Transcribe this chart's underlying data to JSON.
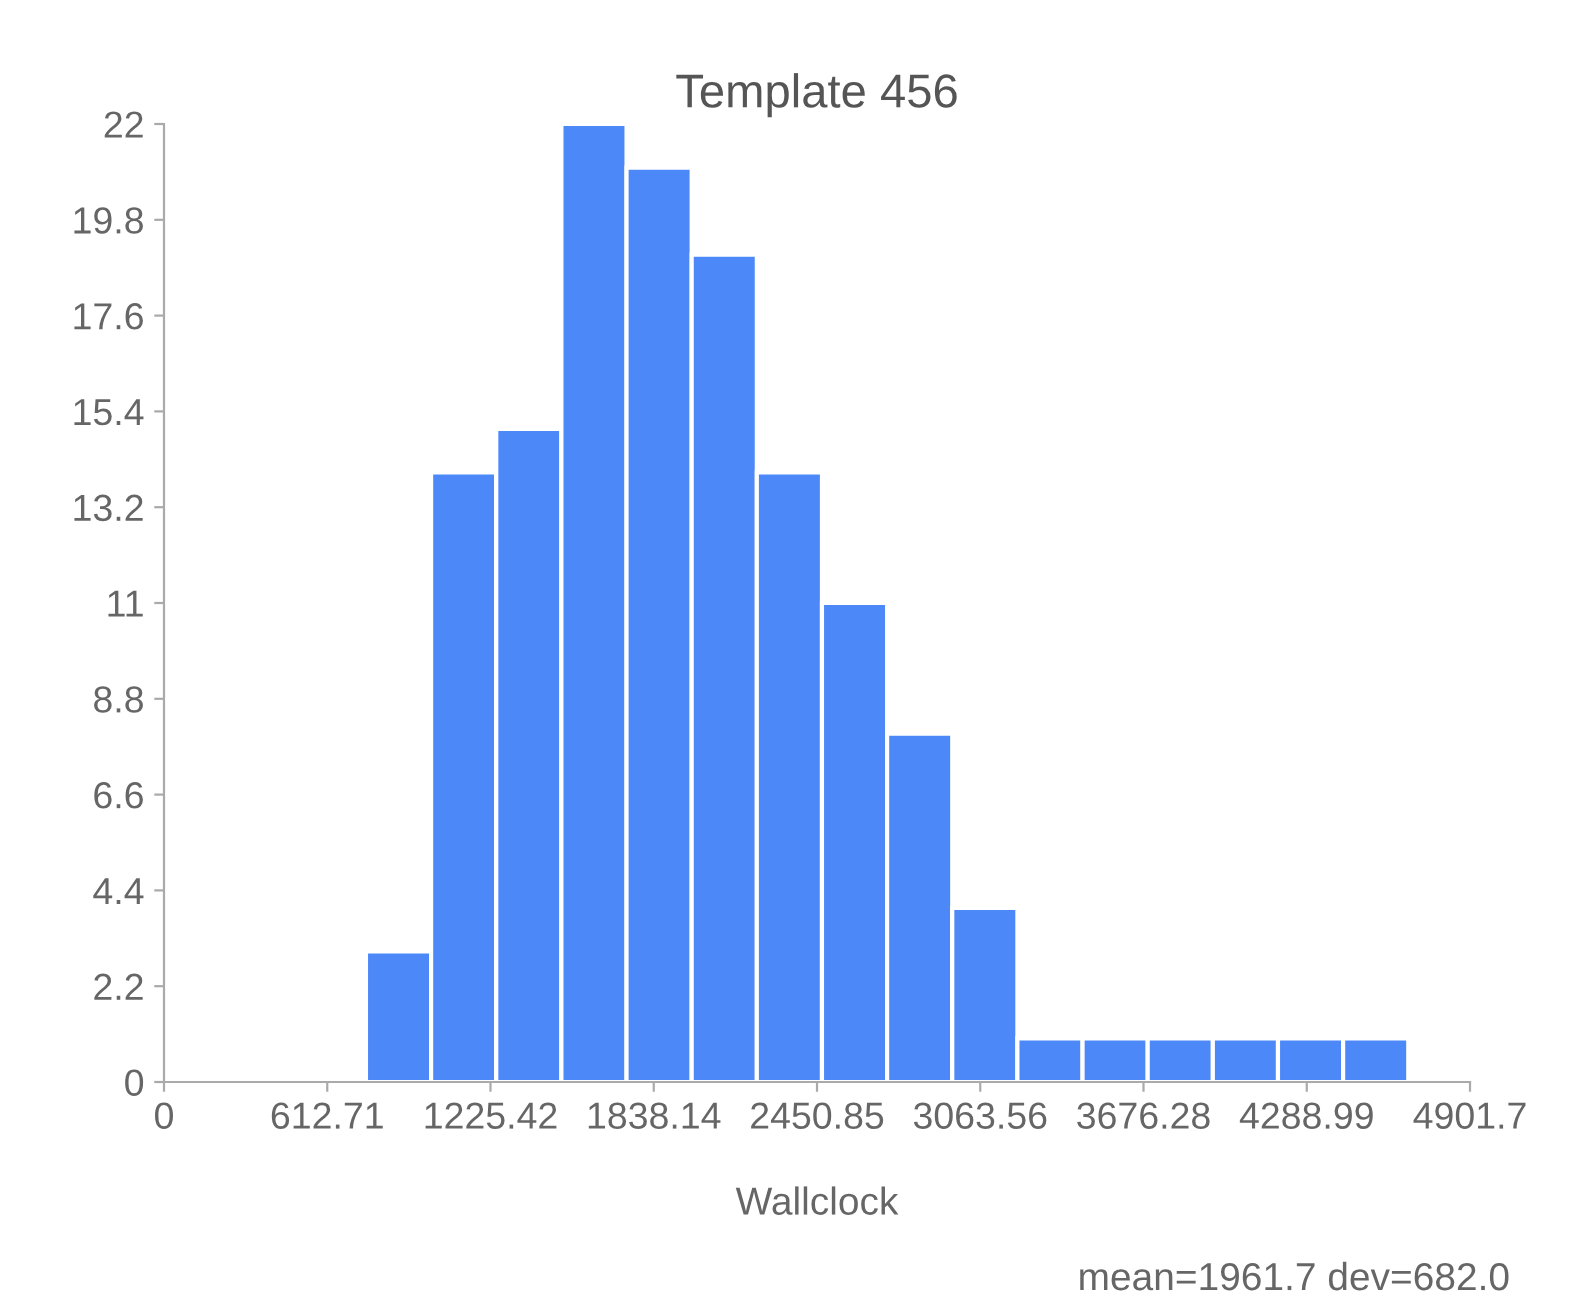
{
  "chart_data": {
    "type": "histogram",
    "title": "Template 456",
    "xlabel": "Wallclock",
    "bins": [
      758,
      1002.5,
      1247,
      1491.5,
      1736,
      1980.5,
      2225,
      2469.5,
      2714,
      2958.5,
      3203,
      3447.5,
      3692,
      3936.5,
      4181,
      4425.5,
      4670
    ],
    "values": [
      3,
      14,
      15,
      22,
      21,
      19,
      14,
      11,
      8,
      4,
      1,
      1,
      1,
      1,
      1,
      1
    ],
    "color": "#4d88f9",
    "xlim": [
      0,
      4901.7
    ],
    "xticks": [
      0,
      612.71,
      1225.42,
      1838.14,
      2450.85,
      3063.56,
      3676.28,
      4288.99,
      4901.7
    ],
    "ylim": [
      0,
      22
    ],
    "yticks": [
      0,
      2.2,
      4.4,
      6.6,
      8.8,
      11,
      13.2,
      15.4,
      17.6,
      19.8,
      22
    ],
    "grid": false,
    "annotations": [
      "mean=1961.7 dev=682.0"
    ]
  }
}
